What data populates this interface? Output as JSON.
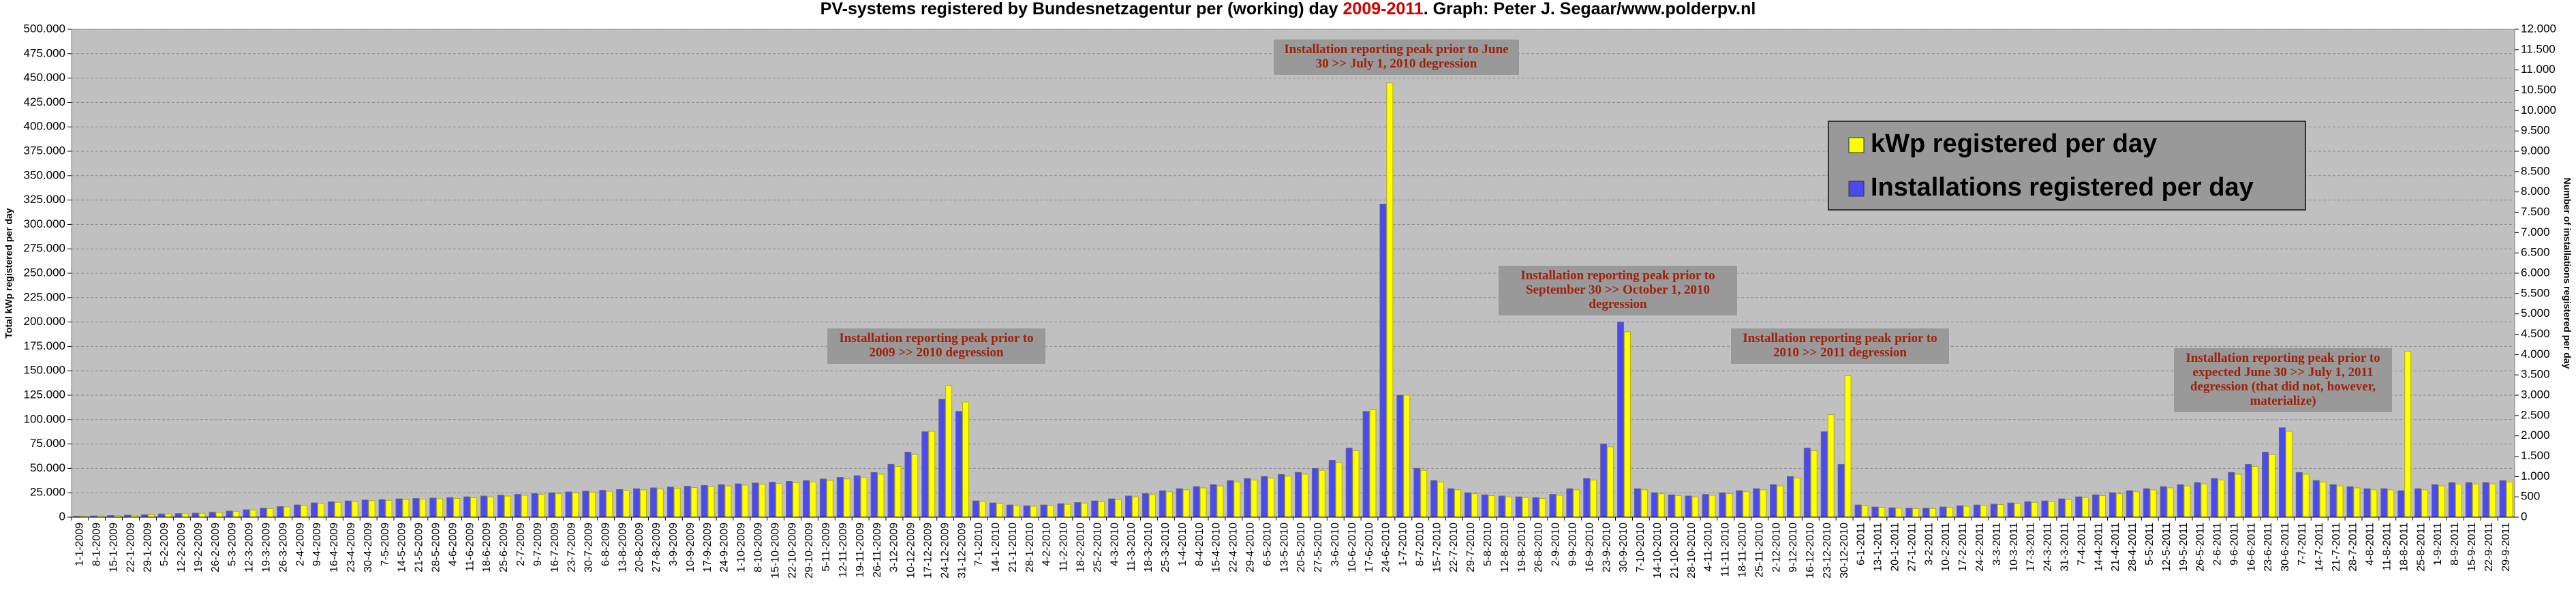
{
  "chart_data": {
    "type": "bar",
    "title_parts": [
      "PV-systems registered by Bundesnetzagentur per (working) day ",
      "2009-2011",
      ". Graph: Peter J. Segaar/www.polderpv.nl"
    ],
    "title_colors": [
      "#000000",
      "#d00000",
      "#000000"
    ],
    "ylabel": "Total kWp registered per day",
    "y2label": "Number of installations registered per day",
    "grid": true,
    "categories": [
      "1-1-2009",
      "8-1-2009",
      "15-1-2009",
      "22-1-2009",
      "29-1-2009",
      "5-2-2009",
      "12-2-2009",
      "19-2-2009",
      "26-2-2009",
      "5-3-2009",
      "12-3-2009",
      "19-3-2009",
      "26-3-2009",
      "2-4-2009",
      "9-4-2009",
      "16-4-2009",
      "23-4-2009",
      "30-4-2009",
      "7-5-2009",
      "14-5-2009",
      "21-5-2009",
      "28-5-2009",
      "4-6-2009",
      "11-6-2009",
      "18-6-2009",
      "25-6-2009",
      "2-7-2009",
      "9-7-2009",
      "16-7-2009",
      "23-7-2009",
      "30-7-2009",
      "6-8-2009",
      "13-8-2009",
      "20-8-2009",
      "27-8-2009",
      "3-9-2009",
      "10-9-2009",
      "17-9-2009",
      "24-9-2009",
      "1-10-2009",
      "8-10-2009",
      "15-10-2009",
      "22-10-2009",
      "29-10-2009",
      "5-11-2009",
      "12-11-2009",
      "19-11-2009",
      "26-11-2009",
      "3-12-2009",
      "10-12-2009",
      "17-12-2009",
      "24-12-2009",
      "31-12-2009",
      "7-1-2010",
      "14-1-2010",
      "21-1-2010",
      "28-1-2010",
      "4-2-2010",
      "11-2-2010",
      "18-2-2010",
      "25-2-2010",
      "4-3-2010",
      "11-3-2010",
      "18-3-2010",
      "25-3-2010",
      "1-4-2010",
      "8-4-2010",
      "15-4-2010",
      "22-4-2010",
      "29-4-2010",
      "6-5-2010",
      "13-5-2010",
      "20-5-2010",
      "27-5-2010",
      "3-6-2010",
      "10-6-2010",
      "17-6-2010",
      "24-6-2010",
      "1-7-2010",
      "8-7-2010",
      "15-7-2010",
      "22-7-2010",
      "29-7-2010",
      "5-8-2010",
      "12-8-2010",
      "19-8-2010",
      "26-8-2010",
      "2-9-2010",
      "9-9-2010",
      "16-9-2010",
      "23-9-2010",
      "30-9-2010",
      "7-10-2010",
      "14-10-2010",
      "21-10-2010",
      "28-10-2010",
      "4-11-2010",
      "11-11-2010",
      "18-11-2010",
      "25-11-2010",
      "2-12-2010",
      "9-12-2010",
      "16-12-2010",
      "23-12-2010",
      "30-12-2010",
      "6-1-2011",
      "13-1-2011",
      "20-1-2011",
      "27-1-2011",
      "3-2-2011",
      "10-2-2011",
      "17-2-2011",
      "24-2-2011",
      "3-3-2011",
      "10-3-2011",
      "17-3-2011",
      "24-3-2011",
      "31-3-2011",
      "7-4-2011",
      "14-4-2011",
      "21-4-2011",
      "28-4-2011",
      "5-5-2011",
      "12-5-2011",
      "19-5-2011",
      "26-5-2011",
      "2-6-2011",
      "9-6-2011",
      "16-6-2011",
      "23-6-2011",
      "30-6-2011",
      "7-7-2011",
      "14-7-2011",
      "21-7-2011",
      "28-7-2011",
      "4-8-2011",
      "11-8-2011",
      "18-8-2011",
      "25-8-2011",
      "1-9-2011",
      "8-9-2011",
      "15-9-2011",
      "22-9-2011",
      "29-9-2011"
    ],
    "series": [
      {
        "name": "kWp registered per day",
        "color": "#ffff00",
        "values": [
          800,
          1200,
          1600,
          2000,
          2400,
          3200,
          3600,
          4000,
          4800,
          6000,
          7200,
          8800,
          10400,
          12000,
          14000,
          15200,
          16000,
          16800,
          17200,
          18000,
          18400,
          18800,
          19200,
          20000,
          20800,
          21600,
          22400,
          23200,
          24000,
          24800,
          25600,
          26400,
          27200,
          28000,
          28800,
          29600,
          30400,
          31200,
          32000,
          32800,
          33600,
          34400,
          35200,
          36000,
          37600,
          39200,
          40800,
          44000,
          52000,
          64000,
          88000,
          135000,
          118000,
          16000,
          14000,
          12000,
          11200,
          12000,
          13200,
          14400,
          16000,
          18000,
          20800,
          23200,
          26000,
          28000,
          30000,
          32000,
          36000,
          38000,
          40000,
          42000,
          44000,
          48000,
          56000,
          68000,
          110000,
          445000,
          125000,
          48000,
          36000,
          28000,
          24000,
          22000,
          20800,
          20000,
          19200,
          22400,
          28000,
          38000,
          72000,
          190000,
          28000,
          24000,
          22000,
          20800,
          22400,
          24000,
          26000,
          28000,
          32000,
          40000,
          68000,
          105000,
          145000,
          12000,
          10000,
          9200,
          8800,
          8800,
          10000,
          11200,
          12000,
          12800,
          14000,
          15200,
          16000,
          18000,
          20000,
          22000,
          24000,
          26000,
          28000,
          30000,
          32000,
          34000,
          38000,
          44000,
          52000,
          64000,
          88000,
          44000,
          36000,
          32000,
          30000,
          28000,
          28000,
          170000,
          28000,
          32000,
          34000,
          34000,
          34000,
          36000
        ]
      },
      {
        "name": "Installations registered per day",
        "color": "#4a4af0",
        "axis": "y2",
        "values": [
          20,
          30,
          40,
          50,
          60,
          80,
          90,
          100,
          120,
          150,
          180,
          220,
          260,
          300,
          350,
          380,
          400,
          420,
          430,
          450,
          460,
          470,
          480,
          500,
          520,
          540,
          560,
          580,
          600,
          620,
          640,
          660,
          680,
          700,
          720,
          740,
          760,
          780,
          800,
          820,
          840,
          860,
          880,
          900,
          940,
          980,
          1020,
          1100,
          1300,
          1600,
          2100,
          2900,
          2600,
          400,
          350,
          300,
          280,
          300,
          330,
          360,
          400,
          450,
          520,
          580,
          650,
          700,
          750,
          800,
          900,
          950,
          1000,
          1050,
          1100,
          1200,
          1400,
          1700,
          2600,
          7700,
          3000,
          1200,
          900,
          700,
          600,
          550,
          520,
          500,
          480,
          560,
          700,
          950,
          1800,
          4800,
          700,
          600,
          550,
          520,
          560,
          600,
          650,
          700,
          800,
          1000,
          1700,
          2100,
          1300,
          300,
          250,
          230,
          220,
          220,
          250,
          280,
          300,
          320,
          350,
          380,
          400,
          450,
          500,
          550,
          600,
          650,
          700,
          750,
          800,
          850,
          950,
          1100,
          1300,
          1600,
          2200,
          1100,
          900,
          800,
          750,
          700,
          700,
          650,
          700,
          800,
          850,
          850,
          850,
          900
        ]
      }
    ],
    "ylim": [
      0,
      500000
    ],
    "yticks": [
      0,
      {
        "value": 25000,
        "label": "25.000"
      },
      {
        "value": 50000,
        "label": "50.000"
      },
      {
        "value": 75000,
        "label": "75.000"
      },
      {
        "value": 100000,
        "label": "100.000"
      },
      {
        "value": 125000,
        "label": "125.000"
      },
      {
        "value": 150000,
        "label": "150.000"
      },
      {
        "value": 175000,
        "label": "175.000"
      },
      {
        "value": 200000,
        "label": "200.000"
      },
      {
        "value": 225000,
        "label": "225.000"
      },
      {
        "value": 250000,
        "label": "250.000"
      },
      {
        "value": 275000,
        "label": "275.000"
      },
      {
        "value": 300000,
        "label": "300.000"
      },
      {
        "value": 325000,
        "label": "325.000"
      },
      {
        "value": 350000,
        "label": "350.000"
      },
      {
        "value": 375000,
        "label": "375.000"
      },
      {
        "value": 400000,
        "label": "400.000"
      },
      {
        "value": 425000,
        "label": "425.000"
      },
      {
        "value": 450000,
        "label": "450.000"
      },
      {
        "value": 475000,
        "label": "475.000"
      },
      {
        "value": 500000,
        "label": "500.000"
      }
    ],
    "y2lim": [
      0,
      12000
    ],
    "y2ticks": [
      0,
      500,
      {
        "value": 1000,
        "label": "1.000"
      },
      {
        "value": 1500,
        "label": "1.500"
      },
      {
        "value": 2000,
        "label": "2.000"
      },
      {
        "value": 2500,
        "label": "2.500"
      },
      {
        "value": 3000,
        "label": "3.000"
      },
      {
        "value": 3500,
        "label": "3.500"
      },
      {
        "value": 4000,
        "label": "4.000"
      },
      {
        "value": 4500,
        "label": "4.500"
      },
      {
        "value": 5000,
        "label": "5.000"
      },
      {
        "value": 5500,
        "label": "5.500"
      },
      {
        "value": 6000,
        "label": "6.000"
      },
      {
        "value": 6500,
        "label": "6.500"
      },
      {
        "value": 7000,
        "label": "7.000"
      },
      {
        "value": 7500,
        "label": "7.500"
      },
      {
        "value": 8000,
        "label": "8.000"
      },
      {
        "value": 8500,
        "label": "8.500"
      },
      {
        "value": 9000,
        "label": "9.000"
      },
      {
        "value": 9500,
        "label": "9.500"
      },
      {
        "value": 10000,
        "label": "10.000"
      },
      {
        "value": 10500,
        "label": "10.500"
      },
      {
        "value": 11000,
        "label": "11.000"
      },
      {
        "value": 11500,
        "label": "11.500"
      },
      {
        "value": 12000,
        "label": "12.000"
      }
    ],
    "annotations": [
      [
        "Installation reporting peak prior to",
        "2009 >> 2010 degression"
      ],
      [
        "Installation reporting peak prior to June",
        "30 >> July 1,  2010 degression"
      ],
      [
        "Installation reporting peak prior to",
        "September 30 >> October 1,  2010",
        "degression"
      ],
      [
        "Installation reporting peak prior to",
        "2010 >> 2011 degression"
      ],
      [
        "Installation reporting peak prior to",
        "expected  June 30 >> July 1,  2011",
        "degression (that did not, however,",
        "materialize)"
      ]
    ]
  }
}
